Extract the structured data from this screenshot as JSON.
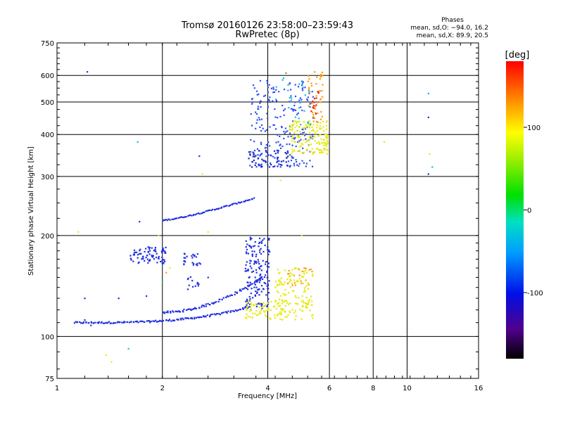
{
  "chart_data": {
    "type": "scatter",
    "title": "Tromsø 20160126 23:58:00–23:59:43",
    "subtitle": "RwPretec (8p)",
    "xlabel": "Frequency [MHz]",
    "ylabel": "Stationary phase Virtual Height [km]",
    "x_scale": "log",
    "y_scale": "log",
    "xlim": [
      1,
      16
    ],
    "ylim": [
      75,
      750
    ],
    "x_ticks": [
      1,
      2,
      4,
      6,
      8,
      10,
      16
    ],
    "y_ticks": [
      75,
      100,
      200,
      300,
      400,
      500,
      600,
      750
    ],
    "x_grid": [
      2,
      4,
      6,
      8,
      10
    ],
    "y_grid": [
      100,
      200,
      300,
      400,
      500,
      600
    ],
    "grid": true,
    "phase_info": {
      "title": "Phases",
      "line_o": "mean, sd,O: −94.0, 16.2",
      "line_x": "mean, sd,X:  89.9, 20.5"
    },
    "colorbar": {
      "label": "[deg]",
      "range": [
        -180,
        180
      ],
      "ticks": [
        100,
        0,
        -100
      ]
    },
    "series": [
      {
        "kind": "line",
        "color": "#2030e0",
        "x0": 1.12,
        "x1": 3.5,
        "y0": 110,
        "y1": 122,
        "curve": 3.2,
        "n": 140,
        "jx": 0.012,
        "jy": 0.012
      },
      {
        "kind": "line",
        "color": "#2030e0",
        "x0": 2.0,
        "x1": 3.8,
        "y0": 118,
        "y1": 148,
        "curve": 2.0,
        "n": 80,
        "jx": 0.012,
        "jy": 0.015
      },
      {
        "kind": "line",
        "color": "#2030e0",
        "x0": 2.0,
        "x1": 3.65,
        "y0": 222,
        "y1": 258,
        "curve": 1.3,
        "n": 70,
        "jx": 0.008,
        "jy": 0.008
      },
      {
        "kind": "blob",
        "color": "#2030e0",
        "fmin": 1.62,
        "fmax": 2.05,
        "hmin": 165,
        "hmax": 185,
        "n": 80
      },
      {
        "kind": "blob",
        "color": "#2030e0",
        "fmin": 2.3,
        "fmax": 2.6,
        "hmin": 163,
        "hmax": 178,
        "n": 25
      },
      {
        "kind": "blob",
        "color": "#2030e0",
        "fmin": 2.35,
        "fmax": 2.55,
        "hmin": 138,
        "hmax": 152,
        "n": 12
      },
      {
        "kind": "blob",
        "color": "#2030e0",
        "fmin": 3.45,
        "fmax": 4.05,
        "hmin": 120,
        "hmax": 200,
        "n": 170
      },
      {
        "kind": "blob",
        "color": "#3050f0",
        "fmin": 3.55,
        "fmax": 5.4,
        "hmin": 320,
        "hmax": 580,
        "n": 230
      },
      {
        "kind": "blob",
        "color": "#1828c8",
        "fmin": 3.5,
        "fmax": 4.6,
        "hmin": 320,
        "hmax": 360,
        "n": 60
      },
      {
        "kind": "blob",
        "color": "#e6ea10",
        "fmin": 3.45,
        "fmax": 5.4,
        "hmin": 112,
        "hmax": 128,
        "n": 120
      },
      {
        "kind": "blob",
        "color": "#e6ea10",
        "fmin": 4.2,
        "fmax": 5.4,
        "hmin": 125,
        "hmax": 160,
        "n": 90
      },
      {
        "kind": "blob",
        "color": "#ff9a10",
        "fmin": 4.5,
        "fmax": 5.4,
        "hmin": 140,
        "hmax": 160,
        "n": 20
      },
      {
        "kind": "blob",
        "color": "#e6ea10",
        "fmin": 4.6,
        "fmax": 5.95,
        "hmin": 350,
        "hmax": 440,
        "n": 150
      },
      {
        "kind": "blob",
        "color": "#ff9a10",
        "fmin": 5.2,
        "fmax": 5.75,
        "hmin": 420,
        "hmax": 620,
        "n": 50
      },
      {
        "kind": "blob",
        "color": "#e02020",
        "fmin": 5.3,
        "fmax": 5.6,
        "hmin": 460,
        "hmax": 540,
        "n": 12
      },
      {
        "kind": "blob",
        "color": "#10c0e0",
        "fmin": 4.2,
        "fmax": 5.3,
        "hmin": 420,
        "hmax": 620,
        "n": 25
      },
      {
        "kind": "pts",
        "color": "#2030e0",
        "pts": [
          [
            1.22,
            615
          ],
          [
            11.5,
            450
          ],
          [
            11.5,
            305
          ],
          [
            1.72,
            220
          ],
          [
            2.55,
            345
          ],
          [
            1.2,
            130
          ],
          [
            1.5,
            130
          ],
          [
            2.7,
            150
          ],
          [
            1.8,
            132
          ],
          [
            1.2,
            112
          ],
          [
            1.25,
            108
          ]
        ]
      },
      {
        "kind": "pts",
        "color": "#10c0e0",
        "pts": [
          [
            11.5,
            530
          ],
          [
            11.8,
            320
          ],
          [
            1.7,
            380
          ]
        ]
      },
      {
        "kind": "pts",
        "color": "#e6ea10",
        "pts": [
          [
            1.38,
            88
          ],
          [
            1.43,
            84
          ],
          [
            1.15,
            205
          ],
          [
            2.6,
            305
          ],
          [
            8.6,
            380
          ],
          [
            11.6,
            350
          ],
          [
            4.35,
            292
          ],
          [
            2.1,
            160
          ],
          [
            1.95,
            200
          ],
          [
            5.0,
            200
          ],
          [
            2.7,
            205
          ]
        ]
      },
      {
        "kind": "pts",
        "color": "#30d060",
        "pts": [
          [
            1.6,
            92
          ],
          [
            2.0,
            145
          ]
        ]
      },
      {
        "kind": "pts",
        "color": "#ff9a10",
        "pts": [
          [
            4.5,
            610
          ],
          [
            2.05,
            155
          ]
        ]
      }
    ]
  }
}
